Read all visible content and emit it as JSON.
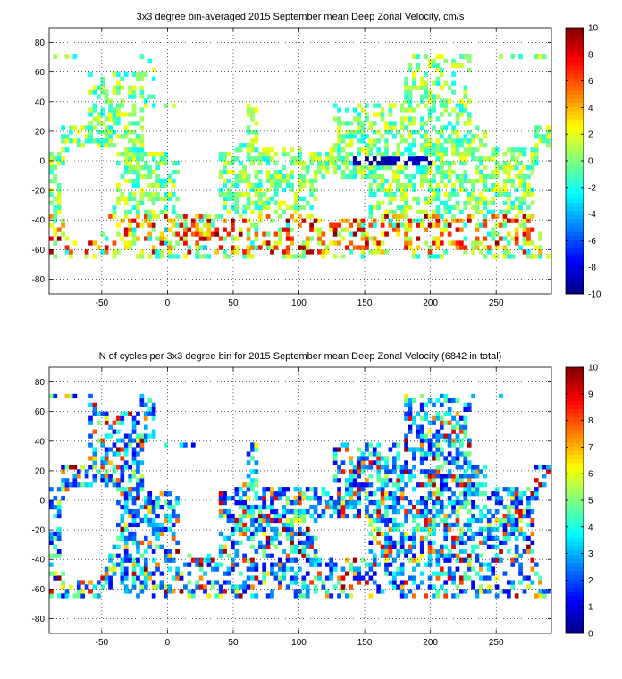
{
  "chart_data": [
    {
      "type": "heatmap",
      "title": "3x3 degree bin-averaged 2015 September mean Deep Zonal Velocity, cm/s",
      "xlabel": "",
      "ylabel": "",
      "xlim": [
        -90,
        292
      ],
      "ylim": [
        -90,
        90
      ],
      "x_ticks": [
        -50,
        0,
        50,
        100,
        150,
        200,
        250
      ],
      "y_ticks": [
        -80,
        -60,
        -40,
        -20,
        0,
        20,
        40,
        60,
        80
      ],
      "grid": true,
      "bin_size_deg": 3,
      "colorbar": {
        "min": -10,
        "max": 10,
        "ticks": [
          -10,
          -8,
          -6,
          -4,
          -2,
          0,
          2,
          4,
          6,
          8,
          10
        ],
        "colormap": "jet"
      }
    },
    {
      "type": "heatmap",
      "title": "N of cycles per 3x3 degree bin for 2015 September mean Deep Zonal Velocity (6842 in total)",
      "xlabel": "",
      "ylabel": "",
      "xlim": [
        -90,
        292
      ],
      "ylim": [
        -90,
        90
      ],
      "x_ticks": [
        -50,
        0,
        50,
        100,
        150,
        200,
        250
      ],
      "y_ticks": [
        -80,
        -60,
        -40,
        -20,
        0,
        20,
        40,
        60,
        80
      ],
      "grid": true,
      "bin_size_deg": 3,
      "total_cycles": 6842,
      "colorbar": {
        "min": 0,
        "max": 10,
        "ticks": [
          0,
          1,
          2,
          3,
          4,
          5,
          6,
          7,
          8,
          9,
          10
        ],
        "colormap": "jet"
      }
    }
  ]
}
